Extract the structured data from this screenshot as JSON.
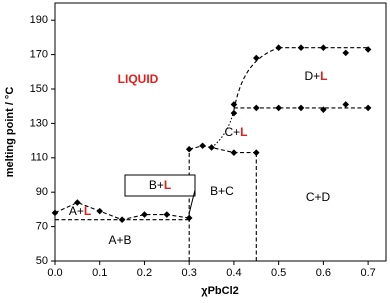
{
  "chart_data": {
    "type": "scatter",
    "x_label": "χPbCl2",
    "y_label": "melting point / °C",
    "x": [
      0,
      0.05,
      0.1,
      0.15,
      0.2,
      0.25,
      0.3,
      0.3,
      0.33,
      0.35,
      0.4,
      0.45,
      0.4,
      0.4,
      0.45,
      0.5,
      0.55,
      0.6,
      0.65,
      0.7,
      0.45,
      0.5,
      0.55,
      0.6,
      0.65,
      0.7
    ],
    "values": [
      78,
      84,
      79,
      74,
      77,
      77,
      75,
      115,
      117,
      116,
      113,
      113,
      136,
      141,
      168,
      174,
      174,
      174,
      171,
      173,
      139,
      139,
      139,
      138,
      141,
      139
    ],
    "color": "#000000",
    "xlim": [
      0,
      0.74
    ],
    "ylim": [
      50,
      200
    ],
    "xticks": [
      {
        "value": 0,
        "label": "0.0"
      },
      0.1,
      0.2,
      0.3,
      0.4,
      0.5,
      0.6,
      0.7
    ],
    "yticks": [
      50,
      70,
      90,
      110,
      130,
      150,
      170,
      190
    ],
    "regions": [
      [
        {
          "text": "LIQUID",
          "color": "#e41e1e"
        }
      ],
      [
        {
          "text": "A+",
          "color": "#000000"
        },
        {
          "text": "L",
          "color": "#e41e1e"
        }
      ],
      [
        {
          "text": "B+",
          "color": "#000000"
        },
        {
          "text": "L",
          "color": "#e41e1e"
        }
      ],
      [
        {
          "text": "C+",
          "color": "#000000"
        },
        {
          "text": "L",
          "color": "#e41e1e"
        }
      ],
      [
        {
          "text": "D+",
          "color": "#000000"
        },
        {
          "text": "L",
          "color": "#e41e1e"
        }
      ],
      [
        {
          "text": "A+B",
          "color": "#000000"
        }
      ],
      [
        {
          "text": "B+C",
          "color": "#000000"
        }
      ],
      [
        {
          "text": "C+D",
          "color": "#000000"
        }
      ]
    ]
  }
}
